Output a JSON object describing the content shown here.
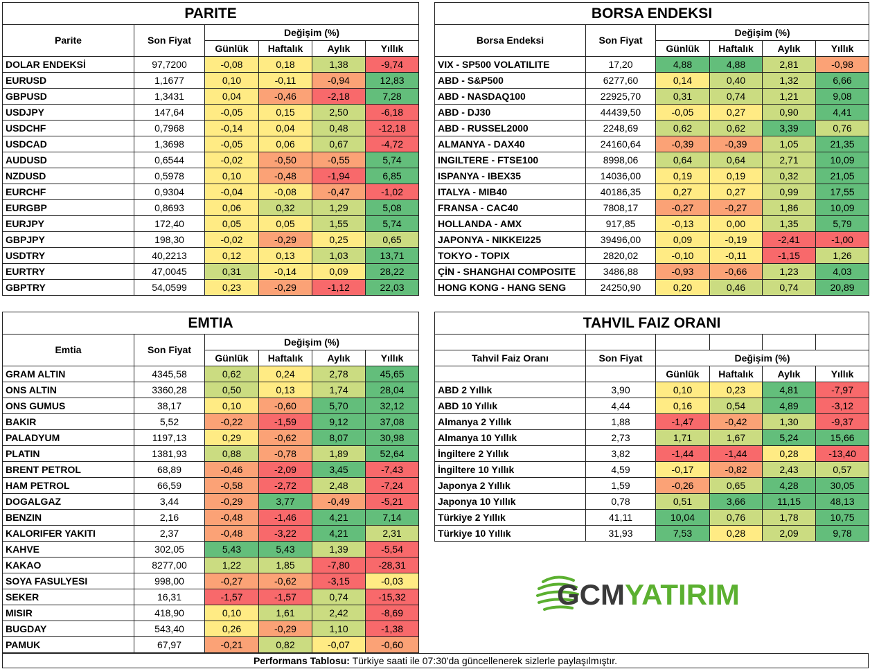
{
  "colors": {
    "red": "#f8696b",
    "orange": "#fba276",
    "yellow": "#ffeb84",
    "lime": "#cbdc81",
    "green": "#63be7b"
  },
  "columns": {
    "son_fiyat": "Son Fiyat",
    "degisim": "Değişim (%)",
    "gunluk": "Günlük",
    "haftalik": "Haftalık",
    "aylik": "Aylık",
    "yillik": "Yıllık"
  },
  "parite": {
    "title": "PARITE",
    "name_header": "Parite",
    "rows": [
      {
        "name": "DOLAR ENDEKSİ",
        "price": "97,7200",
        "d": "-0,08",
        "w": "0,18",
        "m": "1,38",
        "y": "-9,74"
      },
      {
        "name": "EURUSD",
        "price": "1,1677",
        "d": "0,10",
        "w": "-0,11",
        "m": "-0,94",
        "y": "12,83"
      },
      {
        "name": "GBPUSD",
        "price": "1,3431",
        "d": "0,04",
        "w": "-0,46",
        "m": "-2,18",
        "y": "7,28"
      },
      {
        "name": "USDJPY",
        "price": "147,64",
        "d": "-0,05",
        "w": "0,15",
        "m": "2,50",
        "y": "-6,18"
      },
      {
        "name": "USDCHF",
        "price": "0,7968",
        "d": "-0,14",
        "w": "0,04",
        "m": "0,48",
        "y": "-12,18"
      },
      {
        "name": "USDCAD",
        "price": "1,3698",
        "d": "-0,05",
        "w": "0,06",
        "m": "0,67",
        "y": "-4,72"
      },
      {
        "name": "AUDUSD",
        "price": "0,6544",
        "d": "-0,02",
        "w": "-0,50",
        "m": "-0,55",
        "y": "5,74"
      },
      {
        "name": "NZDUSD",
        "price": "0,5978",
        "d": "0,10",
        "w": "-0,48",
        "m": "-1,94",
        "y": "6,85"
      },
      {
        "name": "EURCHF",
        "price": "0,9304",
        "d": "-0,04",
        "w": "-0,08",
        "m": "-0,47",
        "y": "-1,02"
      },
      {
        "name": "EURGBP",
        "price": "0,8693",
        "d": "0,06",
        "w": "0,32",
        "m": "1,29",
        "y": "5,08"
      },
      {
        "name": "EURJPY",
        "price": "172,40",
        "d": "0,05",
        "w": "0,05",
        "m": "1,55",
        "y": "5,74"
      },
      {
        "name": "GBPJPY",
        "price": "198,30",
        "d": "-0,02",
        "w": "-0,29",
        "m": "0,25",
        "y": "0,65"
      },
      {
        "name": "USDTRY",
        "price": "40,2213",
        "d": "0,12",
        "w": "0,13",
        "m": "1,03",
        "y": "13,71"
      },
      {
        "name": "EURTRY",
        "price": "47,0045",
        "d": "0,31",
        "w": "-0,14",
        "m": "0,09",
        "y": "28,22"
      },
      {
        "name": "GBPTRY",
        "price": "54,0599",
        "d": "0,23",
        "w": "-0,29",
        "m": "-1,12",
        "y": "22,03"
      }
    ]
  },
  "borsa": {
    "title": "BORSA ENDEKSI",
    "name_header": "Borsa Endeksi",
    "rows": [
      {
        "name": "VIX  - SP500 VOLATILITE",
        "price": "17,20",
        "d": "4,88",
        "w": "4,88",
        "m": "2,81",
        "y": "-0,98"
      },
      {
        "name": "ABD - S&P500",
        "price": "6277,60",
        "d": "0,14",
        "w": "0,40",
        "m": "1,32",
        "y": "6,66"
      },
      {
        "name": "ABD - NASDAQ100",
        "price": "22925,70",
        "d": "0,31",
        "w": "0,74",
        "m": "1,21",
        "y": "9,08"
      },
      {
        "name": "ABD - DJ30",
        "price": "44439,50",
        "d": "-0,05",
        "w": "0,27",
        "m": "0,90",
        "y": "4,41"
      },
      {
        "name": "ABD - RUSSEL2000",
        "price": "2248,69",
        "d": "0,62",
        "w": "0,62",
        "m": "3,39",
        "y": "0,76"
      },
      {
        "name": "ALMANYA - DAX40",
        "price": "24160,64",
        "d": "-0,39",
        "w": "-0,39",
        "m": "1,05",
        "y": "21,35"
      },
      {
        "name": "INGILTERE - FTSE100",
        "price": "8998,06",
        "d": "0,64",
        "w": "0,64",
        "m": "2,71",
        "y": "10,09"
      },
      {
        "name": "ISPANYA - IBEX35",
        "price": "14036,00",
        "d": "0,19",
        "w": "0,19",
        "m": "0,32",
        "y": "21,05"
      },
      {
        "name": "ITALYA - MIB40",
        "price": "40186,35",
        "d": "0,27",
        "w": "0,27",
        "m": "0,99",
        "y": "17,55"
      },
      {
        "name": "FRANSA - CAC40",
        "price": "7808,17",
        "d": "-0,27",
        "w": "-0,27",
        "m": "1,86",
        "y": "10,09"
      },
      {
        "name": "HOLLANDA - AMX",
        "price": "917,85",
        "d": "-0,13",
        "w": "0,00",
        "m": "1,35",
        "y": "5,79"
      },
      {
        "name": "JAPONYA - NIKKEI225",
        "price": "39496,00",
        "d": "0,09",
        "w": "-0,19",
        "m": "-2,41",
        "y": "-1,00"
      },
      {
        "name": "TOKYO - TOPIX",
        "price": "2820,02",
        "d": "-0,10",
        "w": "-0,11",
        "m": "-1,15",
        "y": "1,26"
      },
      {
        "name": "ÇİN - SHANGHAI COMPOSITE",
        "price": "3486,88",
        "d": "-0,93",
        "w": "-0,66",
        "m": "1,23",
        "y": "4,03"
      },
      {
        "name": "HONG KONG - HANG SENG",
        "price": "24250,90",
        "d": "0,20",
        "w": "0,46",
        "m": "0,74",
        "y": "20,89"
      }
    ]
  },
  "emtia": {
    "title": "EMTIA",
    "name_header": "Emtia",
    "rows": [
      {
        "name": "GRAM ALTIN",
        "price": "4345,58",
        "d": "0,62",
        "w": "0,24",
        "m": "2,78",
        "y": "45,65"
      },
      {
        "name": "ONS ALTIN",
        "price": "3360,28",
        "d": "0,50",
        "w": "0,13",
        "m": "1,74",
        "y": "28,04"
      },
      {
        "name": "ONS GUMUS",
        "price": "38,17",
        "d": "0,10",
        "w": "-0,60",
        "m": "5,70",
        "y": "32,12"
      },
      {
        "name": "BAKIR",
        "price": "5,52",
        "d": "-0,22",
        "w": "-1,59",
        "m": "9,12",
        "y": "37,08"
      },
      {
        "name": "PALADYUM",
        "price": "1197,13",
        "d": "0,29",
        "w": "-0,62",
        "m": "8,07",
        "y": "30,98"
      },
      {
        "name": "PLATIN",
        "price": "1381,93",
        "d": "0,88",
        "w": "-0,78",
        "m": "1,89",
        "y": "52,64"
      },
      {
        "name": "BRENT PETROL",
        "price": "68,89",
        "d": "-0,46",
        "w": "-2,09",
        "m": "3,45",
        "y": "-7,43"
      },
      {
        "name": "HAM PETROL",
        "price": "66,59",
        "d": "-0,58",
        "w": "-2,72",
        "m": "2,48",
        "y": "-7,24"
      },
      {
        "name": "DOGALGAZ",
        "price": "3,44",
        "d": "-0,29",
        "w": "3,77",
        "m": "-0,49",
        "y": "-5,21"
      },
      {
        "name": "BENZIN",
        "price": "2,16",
        "d": "-0,48",
        "w": "-1,46",
        "m": "4,21",
        "y": "7,14"
      },
      {
        "name": "KALORIFER YAKITI",
        "price": "2,37",
        "d": "-0,48",
        "w": "-3,22",
        "m": "4,21",
        "y": "2,31"
      },
      {
        "name": "KAHVE",
        "price": "302,05",
        "d": "5,43",
        "w": "5,43",
        "m": "1,39",
        "y": "-5,54"
      },
      {
        "name": "KAKAO",
        "price": "8277,00",
        "d": "1,22",
        "w": "1,85",
        "m": "-7,80",
        "y": "-28,31"
      },
      {
        "name": "SOYA FASULYESI",
        "price": "998,00",
        "d": "-0,27",
        "w": "-0,62",
        "m": "-3,15",
        "y": "-0,03"
      },
      {
        "name": "SEKER",
        "price": "16,31",
        "d": "-1,57",
        "w": "-1,57",
        "m": "0,74",
        "y": "-15,32"
      },
      {
        "name": "MISIR",
        "price": "418,90",
        "d": "0,10",
        "w": "1,61",
        "m": "2,42",
        "y": "-8,69"
      },
      {
        "name": "BUGDAY",
        "price": "543,40",
        "d": "0,26",
        "w": "-0,29",
        "m": "1,10",
        "y": "-1,38"
      },
      {
        "name": "PAMUK",
        "price": "67,97",
        "d": "-0,21",
        "w": "0,82",
        "m": "-0,07",
        "y": "-0,60"
      }
    ]
  },
  "tahvil": {
    "title": "TAHVIL FAIZ ORANI",
    "name_header": "Tahvil Faiz Oranı",
    "rows": [
      {
        "name": "ABD 2 Yıllık",
        "price": "3,90",
        "d": "0,10",
        "w": "0,23",
        "m": "4,81",
        "y": "-7,97"
      },
      {
        "name": "ABD 10 Yıllık",
        "price": "4,44",
        "d": "0,16",
        "w": "0,54",
        "m": "4,89",
        "y": "-3,12"
      },
      {
        "name": "Almanya 2 Yıllık",
        "price": "1,88",
        "d": "-1,47",
        "w": "-0,42",
        "m": "1,30",
        "y": "-9,37"
      },
      {
        "name": "Almanya 10 Yıllık",
        "price": "2,73",
        "d": "1,71",
        "w": "1,67",
        "m": "5,24",
        "y": "15,66"
      },
      {
        "name": "İngiltere 2 Yıllık",
        "price": "3,82",
        "d": "-1,44",
        "w": "-1,44",
        "m": "0,28",
        "y": "-13,40"
      },
      {
        "name": "İngiltere 10 Yıllık",
        "price": "4,59",
        "d": "-0,17",
        "w": "-0,82",
        "m": "2,43",
        "y": "0,57"
      },
      {
        "name": "Japonya 2 Yıllık",
        "price": "1,59",
        "d": "-0,26",
        "w": "0,65",
        "m": "4,28",
        "y": "30,05"
      },
      {
        "name": "Japonya 10 Yıllık",
        "price": "0,78",
        "d": "0,51",
        "w": "3,66",
        "m": "11,15",
        "y": "48,13"
      },
      {
        "name": "Türkiye 2 Yıllık",
        "price": "41,11",
        "d": "10,04",
        "w": "0,76",
        "m": "1,78",
        "y": "10,75"
      },
      {
        "name": "Türkiye 10 Yıllık",
        "price": "31,93",
        "d": "7,53",
        "w": "0,28",
        "m": "2,09",
        "y": "9,78"
      }
    ]
  },
  "logo": {
    "text": "GCMYATIRIM",
    "part1": "GCM",
    "part2": "YATIRIM",
    "color": "#3a3a3a",
    "accent": "#5bb030"
  },
  "footer": {
    "bold": "Performans Tablosu:",
    "text": " Türkiye saati ile 07:30'da güncellenerek sizlerle paylaşılmıştır."
  }
}
